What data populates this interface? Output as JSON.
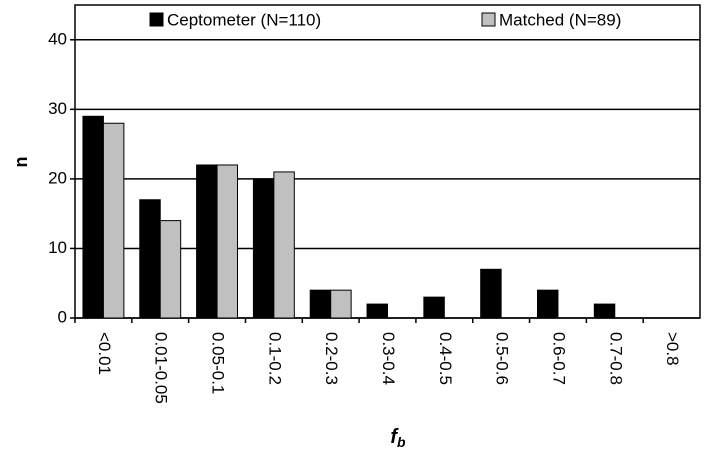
{
  "chart_data": {
    "type": "bar",
    "categories": [
      "<0.01",
      "0.01-0.05",
      "0.05-0.1",
      "0.1-0.2",
      "0.2-0.3",
      "0.3-0.4",
      "0.4-0.5",
      "0.5-0.6",
      "0.6-0.7",
      "0.7-0.8",
      ">0.8"
    ],
    "series": [
      {
        "name": "Ceptometer (N=110)",
        "color": "#000000",
        "values": [
          29,
          17,
          22,
          20,
          4,
          2,
          3,
          7,
          4,
          2,
          0
        ]
      },
      {
        "name": "Matched (N=89)",
        "color": "#c0c0c0",
        "values": [
          28,
          14,
          22,
          21,
          4,
          0,
          0,
          0,
          0,
          0,
          0
        ]
      }
    ],
    "y_label": "n",
    "x_label": "f",
    "x_label_sub": "b",
    "ylim": [
      0,
      45
    ],
    "yticks": [
      0,
      10,
      20,
      30,
      40
    ],
    "grid": true,
    "legend": "top"
  }
}
